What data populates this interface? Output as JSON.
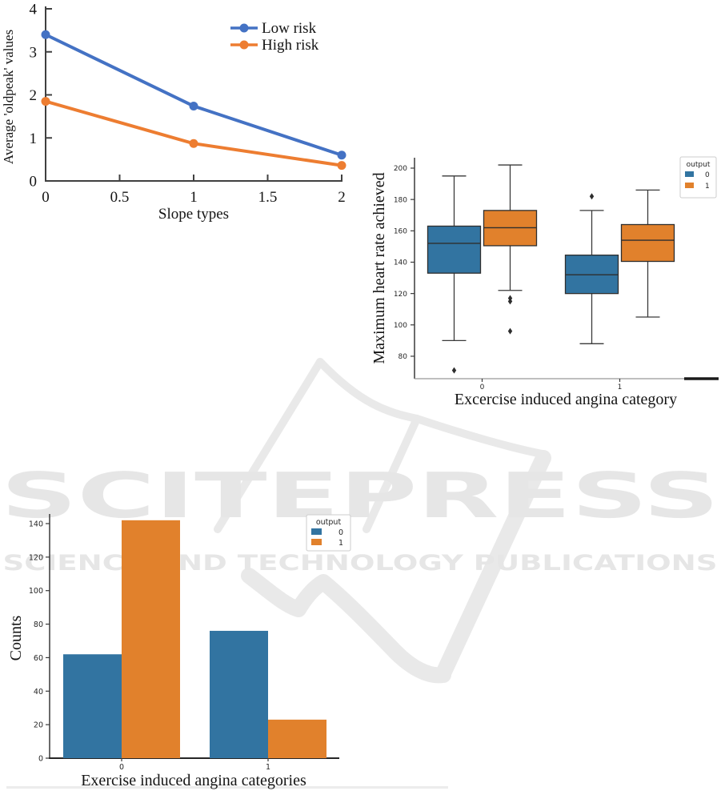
{
  "watermark": {
    "title": "SCITEPRESS",
    "subtitle": "SCIENCE AND TECHNOLOGY PUBLICATIONS",
    "text_color": "#e6e6e6",
    "logo_color": "#e9e9e9"
  },
  "chart_data": [
    {
      "id": "oldpeak-by-slope",
      "type": "line",
      "title": "",
      "xlabel": "Slope types",
      "ylabel": "Average 'oldpeak' values",
      "x": [
        0,
        1,
        2
      ],
      "xticks": {
        "values": [
          0,
          0.5,
          1,
          1.5,
          2
        ],
        "labels": [
          "0",
          "0.5",
          "1",
          "1.5",
          "2"
        ]
      },
      "yticks": [
        0,
        1,
        2,
        3,
        4
      ],
      "xlim": [
        0,
        2
      ],
      "ylim": [
        0,
        4
      ],
      "grid": false,
      "legend_position": "upper-right-inside",
      "series": [
        {
          "name": "Low risk",
          "color": "#4472c4",
          "values": [
            3.4,
            1.74,
            0.6
          ]
        },
        {
          "name": "High risk",
          "color": "#ed7d31",
          "values": [
            1.85,
            0.87,
            0.36
          ]
        }
      ]
    },
    {
      "id": "max-heart-rate-by-angina-box",
      "type": "box",
      "title": "",
      "xlabel": "Excercise induced angina category",
      "ylabel": "Maximum heart rate achieved",
      "categories": [
        "0",
        "1"
      ],
      "yticks": [
        80,
        100,
        120,
        140,
        160,
        180,
        200
      ],
      "ylim": [
        66,
        207
      ],
      "grid": false,
      "legend": {
        "title": "output",
        "entries": [
          {
            "label": "0",
            "color": "#3274a1"
          },
          {
            "label": "1",
            "color": "#e1812c"
          }
        ]
      },
      "series": [
        {
          "name": "0",
          "color": "#3274a1",
          "boxes": [
            {
              "category": "0",
              "whislo": 90,
              "q1": 133,
              "med": 152,
              "q3": 163,
              "whishi": 195,
              "outliers": [
                71
              ]
            },
            {
              "category": "1",
              "whislo": 88,
              "q1": 120,
              "med": 132,
              "q3": 144.5,
              "whishi": 173,
              "outliers": [
                182
              ]
            }
          ]
        },
        {
          "name": "1",
          "color": "#e1812c",
          "boxes": [
            {
              "category": "0",
              "whislo": 122,
              "q1": 150.5,
              "med": 162,
              "q3": 173,
              "whishi": 202,
              "outliers": [
                117,
                115,
                96
              ]
            },
            {
              "category": "1",
              "whislo": 105,
              "q1": 140.5,
              "med": 154,
              "q3": 164,
              "whishi": 186,
              "outliers": []
            }
          ]
        }
      ]
    },
    {
      "id": "angina-category-counts-bar",
      "type": "bar",
      "title": "",
      "xlabel": "Exercise induced angina categories",
      "ylabel": "Counts",
      "categories": [
        "0",
        "1"
      ],
      "yticks": [
        0,
        20,
        40,
        60,
        80,
        100,
        120,
        140
      ],
      "ylim": [
        0,
        147
      ],
      "grid": false,
      "legend": {
        "title": "output",
        "entries": [
          {
            "label": "0",
            "color": "#3274a1"
          },
          {
            "label": "1",
            "color": "#e1812c"
          }
        ]
      },
      "series": [
        {
          "name": "0",
          "color": "#3274a1",
          "values": [
            62,
            76
          ]
        },
        {
          "name": "1",
          "color": "#e1812c",
          "values": [
            142,
            23
          ]
        }
      ]
    }
  ]
}
